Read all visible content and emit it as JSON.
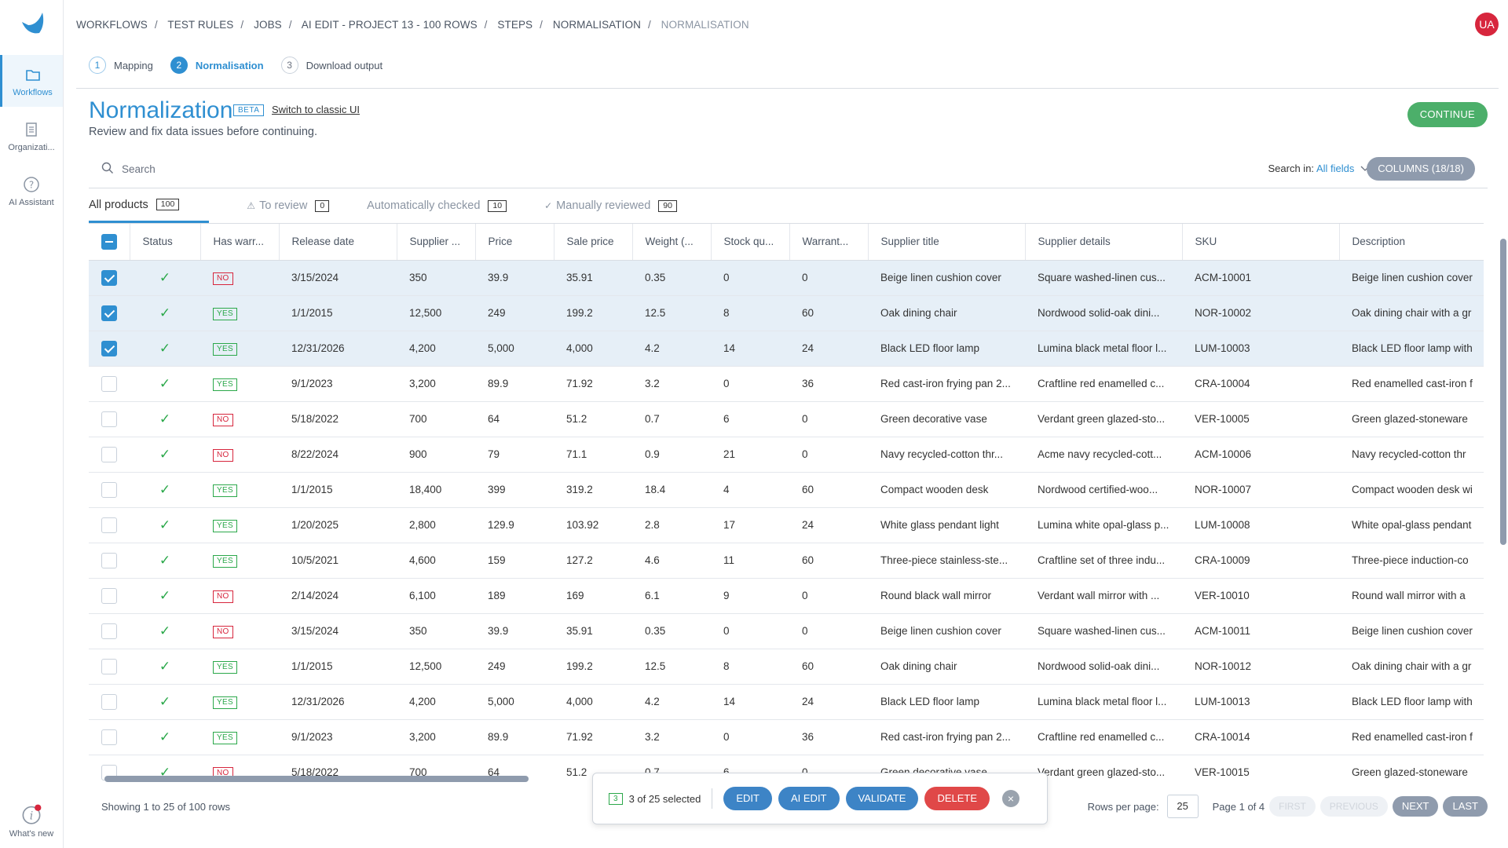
{
  "sidebar": {
    "items": [
      {
        "label": "Workflows",
        "icon": "folder-icon"
      },
      {
        "label": "Organizati...",
        "icon": "document-icon"
      },
      {
        "label": "AI Assistant",
        "icon": "question-icon"
      }
    ],
    "whats_new": "What's new"
  },
  "breadcrumb": [
    "WORKFLOWS",
    "TEST RULES",
    "JOBS",
    "AI EDIT - PROJECT 13 - 100 ROWS",
    "STEPS",
    "NORMALISATION",
    "NORMALISATION"
  ],
  "avatar": "UA",
  "steps": [
    {
      "num": "1",
      "label": "Mapping"
    },
    {
      "num": "2",
      "label": "Normalisation"
    },
    {
      "num": "3",
      "label": "Download output"
    }
  ],
  "header": {
    "title": "Normalization",
    "beta": "BETA",
    "classic_link": "Switch to classic UI",
    "subtitle": "Review and fix data issues before continuing.",
    "continue": "CONTINUE"
  },
  "search": {
    "placeholder": "Search",
    "search_in_label": "Search in:",
    "search_in_value": "All fields",
    "columns_button": "COLUMNS (18/18)"
  },
  "tabs": [
    {
      "label": "All products",
      "count": "100"
    },
    {
      "label": "To review",
      "count": "0"
    },
    {
      "label": "Automatically checked",
      "count": "10"
    },
    {
      "label": "Manually reviewed",
      "count": "90"
    }
  ],
  "columns": [
    "Status",
    "Has warr...",
    "Release date",
    "Supplier ...",
    "Price",
    "Sale price",
    "Weight (...",
    "Stock qu...",
    "Warrant...",
    "Supplier title",
    "Supplier details",
    "SKU",
    "Description"
  ],
  "rows": [
    {
      "sel": true,
      "warranty": "NO",
      "date": "3/15/2024",
      "supplier": "350",
      "price": "39.9",
      "sale": "35.91",
      "weight": "0.35",
      "stock": "0",
      "warr": "0",
      "title": "Beige linen cushion cover",
      "details": "Square washed-linen cus...",
      "sku": "ACM-10001",
      "desc": "Beige linen cushion cover"
    },
    {
      "sel": true,
      "warranty": "YES",
      "date": "1/1/2015",
      "supplier": "12,500",
      "price": "249",
      "sale": "199.2",
      "weight": "12.5",
      "stock": "8",
      "warr": "60",
      "title": "Oak dining chair",
      "details": "Nordwood solid-oak dini...",
      "sku": "NOR-10002",
      "desc": "Oak dining chair with a gr"
    },
    {
      "sel": true,
      "warranty": "YES",
      "date": "12/31/2026",
      "supplier": "4,200",
      "price": "5,000",
      "sale": "4,000",
      "weight": "4.2",
      "stock": "14",
      "warr": "24",
      "title": "Black LED floor lamp",
      "details": "Lumina black metal floor l...",
      "sku": "LUM-10003",
      "desc": "Black LED floor lamp with"
    },
    {
      "sel": false,
      "warranty": "YES",
      "date": "9/1/2023",
      "supplier": "3,200",
      "price": "89.9",
      "sale": "71.92",
      "weight": "3.2",
      "stock": "0",
      "warr": "36",
      "title": "Red cast-iron frying pan 2...",
      "details": "Craftline red enamelled c...",
      "sku": "CRA-10004",
      "desc": "Red enamelled cast-iron f"
    },
    {
      "sel": false,
      "warranty": "NO",
      "date": "5/18/2022",
      "supplier": "700",
      "price": "64",
      "sale": "51.2",
      "weight": "0.7",
      "stock": "6",
      "warr": "0",
      "title": "Green decorative vase",
      "details": "Verdant green glazed-sto...",
      "sku": "VER-10005",
      "desc": "Green glazed-stoneware"
    },
    {
      "sel": false,
      "warranty": "NO",
      "date": "8/22/2024",
      "supplier": "900",
      "price": "79",
      "sale": "71.1",
      "weight": "0.9",
      "stock": "21",
      "warr": "0",
      "title": "Navy recycled-cotton thr...",
      "details": "Acme navy recycled-cott...",
      "sku": "ACM-10006",
      "desc": "Navy recycled-cotton thr"
    },
    {
      "sel": false,
      "warranty": "YES",
      "date": "1/1/2015",
      "supplier": "18,400",
      "price": "399",
      "sale": "319.2",
      "weight": "18.4",
      "stock": "4",
      "warr": "60",
      "title": "Compact wooden desk",
      "details": "Nordwood certified-woo...",
      "sku": "NOR-10007",
      "desc": "Compact wooden desk wi"
    },
    {
      "sel": false,
      "warranty": "YES",
      "date": "1/20/2025",
      "supplier": "2,800",
      "price": "129.9",
      "sale": "103.92",
      "weight": "2.8",
      "stock": "17",
      "warr": "24",
      "title": "White glass pendant light",
      "details": "Lumina white opal-glass p...",
      "sku": "LUM-10008",
      "desc": "White opal-glass pendant"
    },
    {
      "sel": false,
      "warranty": "YES",
      "date": "10/5/2021",
      "supplier": "4,600",
      "price": "159",
      "sale": "127.2",
      "weight": "4.6",
      "stock": "11",
      "warr": "60",
      "title": "Three-piece stainless-ste...",
      "details": "Craftline set of three indu...",
      "sku": "CRA-10009",
      "desc": "Three-piece induction-co"
    },
    {
      "sel": false,
      "warranty": "NO",
      "date": "2/14/2024",
      "supplier": "6,100",
      "price": "189",
      "sale": "169",
      "weight": "6.1",
      "stock": "9",
      "warr": "0",
      "title": "Round black wall mirror",
      "details": "Verdant wall mirror with ...",
      "sku": "VER-10010",
      "desc": "Round wall mirror with a"
    },
    {
      "sel": false,
      "warranty": "NO",
      "date": "3/15/2024",
      "supplier": "350",
      "price": "39.9",
      "sale": "35.91",
      "weight": "0.35",
      "stock": "0",
      "warr": "0",
      "title": "Beige linen cushion cover",
      "details": "Square washed-linen cus...",
      "sku": "ACM-10011",
      "desc": "Beige linen cushion cover"
    },
    {
      "sel": false,
      "warranty": "YES",
      "date": "1/1/2015",
      "supplier": "12,500",
      "price": "249",
      "sale": "199.2",
      "weight": "12.5",
      "stock": "8",
      "warr": "60",
      "title": "Oak dining chair",
      "details": "Nordwood solid-oak dini...",
      "sku": "NOR-10012",
      "desc": "Oak dining chair with a gr"
    },
    {
      "sel": false,
      "warranty": "YES",
      "date": "12/31/2026",
      "supplier": "4,200",
      "price": "5,000",
      "sale": "4,000",
      "weight": "4.2",
      "stock": "14",
      "warr": "24",
      "title": "Black LED floor lamp",
      "details": "Lumina black metal floor l...",
      "sku": "LUM-10013",
      "desc": "Black LED floor lamp with"
    },
    {
      "sel": false,
      "warranty": "YES",
      "date": "9/1/2023",
      "supplier": "3,200",
      "price": "89.9",
      "sale": "71.92",
      "weight": "3.2",
      "stock": "0",
      "warr": "36",
      "title": "Red cast-iron frying pan 2...",
      "details": "Craftline red enamelled c...",
      "sku": "CRA-10014",
      "desc": "Red enamelled cast-iron f"
    },
    {
      "sel": false,
      "warranty": "NO",
      "date": "5/18/2022",
      "supplier": "700",
      "price": "64",
      "sale": "51.2",
      "weight": "0.7",
      "stock": "6",
      "warr": "0",
      "title": "Green decorative vase",
      "details": "Verdant green glazed-sto...",
      "sku": "VER-10015",
      "desc": "Green glazed-stoneware"
    }
  ],
  "footer": {
    "showing": "Showing 1 to 25 of 100 rows",
    "rows_per_page_label": "Rows per page:",
    "rows_per_page": "25",
    "page_info": "Page 1 of 4",
    "first": "FIRST",
    "previous": "PREVIOUS",
    "next": "NEXT",
    "last": "LAST"
  },
  "actions": {
    "count": "3",
    "selected_text": "3 of 25 selected",
    "edit": "EDIT",
    "ai_edit": "AI EDIT",
    "validate": "VALIDATE",
    "delete": "DELETE"
  },
  "colors": {
    "accent": "#2f8fd1",
    "success": "#2ba84a",
    "danger": "#d7263d",
    "continue": "#4caf6a"
  }
}
